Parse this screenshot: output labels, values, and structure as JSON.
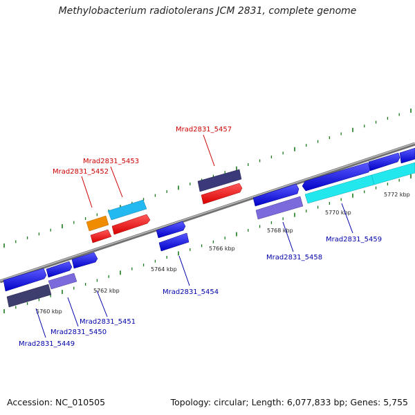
{
  "header": {
    "title": "Methylobacterium radiotolerans JCM 2831, complete genome"
  },
  "footer": {
    "accession": "Accession: NC_010505",
    "topology": "Topology: circular; Length: 6,077,833 bp; Genes: 5,755"
  },
  "colors": {
    "backbone": "#8c8c8c",
    "tick": "#1a7a1a",
    "forward_label": "#cc0000",
    "reverse_label": "#0000aa",
    "gene_blue": "#1a1aee",
    "gene_red": "#ff1111",
    "gene_orange": "#f08c00",
    "gene_skyblue": "#22b8f0",
    "gene_cyan": "#22e8ee",
    "gene_navy": "#3a3a7a",
    "gene_lavender": "#7a6adc",
    "gene_darkslate": "#3d3d6e"
  },
  "scale_labels": [
    "5760 kbp",
    "5762 kbp",
    "5764 kbp",
    "5766 kbp",
    "5768 kbp",
    "5770 kbp",
    "5772 kbp"
  ],
  "gene_labels": {
    "forward": [
      "Mrad2831_5452",
      "Mrad2831_5453",
      "Mrad2831_5457"
    ],
    "reverse": [
      "Mrad2831_5449",
      "Mrad2831_5450",
      "Mrad2831_5451",
      "Mrad2831_5454",
      "Mrad2831_5458",
      "Mrad2831_5459"
    ]
  }
}
